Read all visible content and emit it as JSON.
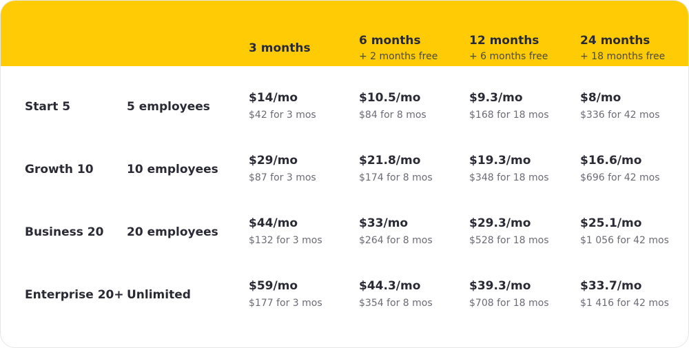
{
  "colors": {
    "header_bg": "#ffcb05",
    "text_dark": "#2a2a35",
    "text_muted": "#6b6b75"
  },
  "columns": [
    {
      "title": "3 months",
      "subtitle": ""
    },
    {
      "title": "6 months",
      "subtitle": "+ 2 months free"
    },
    {
      "title": "12 months",
      "subtitle": "+ 6 months free"
    },
    {
      "title": "24 months",
      "subtitle": "+ 18 months free"
    }
  ],
  "plans": [
    {
      "name": "Start 5",
      "size": "5 employees",
      "prices": [
        {
          "monthly": "$14/mo",
          "total": "$42 for 3 mos"
        },
        {
          "monthly": "$10.5/mo",
          "total": "$84 for 8 mos"
        },
        {
          "monthly": "$9.3/mo",
          "total": "$168 for 18 mos"
        },
        {
          "monthly": "$8/mo",
          "total": "$336 for 42 mos"
        }
      ]
    },
    {
      "name": "Growth 10",
      "size": "10 employees",
      "prices": [
        {
          "monthly": "$29/mo",
          "total": "$87 for 3 mos"
        },
        {
          "monthly": "$21.8/mo",
          "total": "$174 for 8 mos"
        },
        {
          "monthly": "$19.3/mo",
          "total": "$348 for 18 mos"
        },
        {
          "monthly": "$16.6/mo",
          "total": "$696 for 42 mos"
        }
      ]
    },
    {
      "name": "Business 20",
      "size": "20 employees",
      "prices": [
        {
          "monthly": "$44/mo",
          "total": "$132 for 3 mos"
        },
        {
          "monthly": "$33/mo",
          "total": "$264 for 8 mos"
        },
        {
          "monthly": "$29.3/mo",
          "total": "$528 for 18 mos"
        },
        {
          "monthly": "$25.1/mo",
          "total": "$1 056 for 42 mos"
        }
      ]
    },
    {
      "name": "Enterprise 20+",
      "size": "Unlimited",
      "prices": [
        {
          "monthly": "$59/mo",
          "total": "$177 for 3 mos"
        },
        {
          "monthly": "$44.3/mo",
          "total": "$354 for 8 mos"
        },
        {
          "monthly": "$39.3/mo",
          "total": "$708 for 18 mos"
        },
        {
          "monthly": "$33.7/mo",
          "total": "$1 416 for 42 mos"
        }
      ]
    }
  ]
}
